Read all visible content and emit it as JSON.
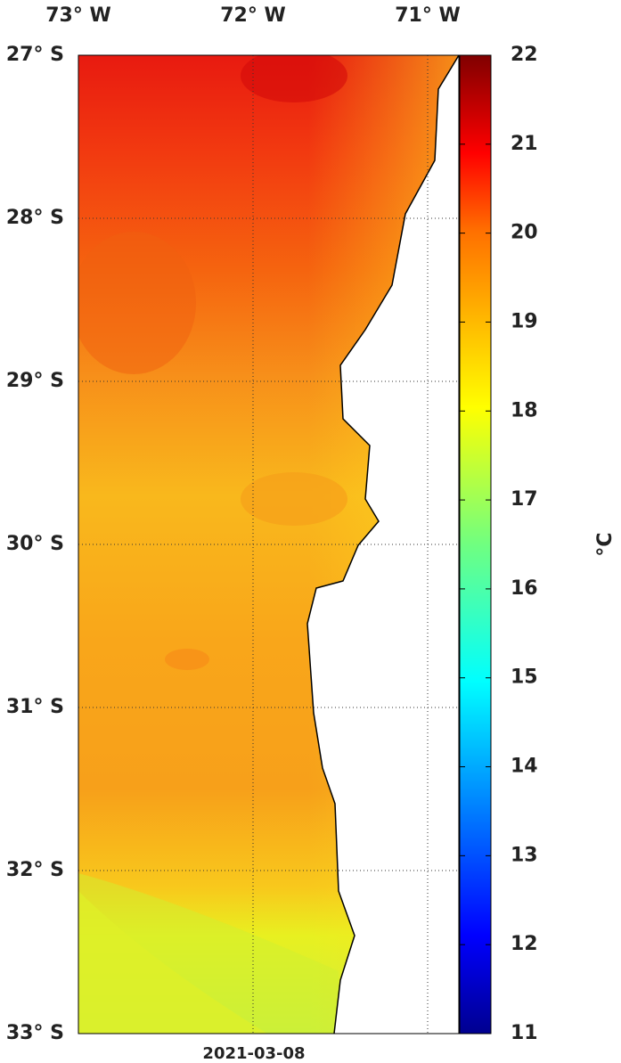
{
  "map": {
    "lon_labels": [
      "73° W",
      "72° W",
      "71° W"
    ],
    "lat_labels": [
      "27° S",
      "28° S",
      "29° S",
      "30° S",
      "31° S",
      "32° S",
      "33° S"
    ],
    "date": "2021-03-08"
  },
  "colorbar": {
    "unit": "°C",
    "range": [
      11,
      22
    ],
    "ticks": [
      11,
      12,
      13,
      14,
      15,
      16,
      17,
      18,
      19,
      20,
      21,
      22
    ]
  }
}
